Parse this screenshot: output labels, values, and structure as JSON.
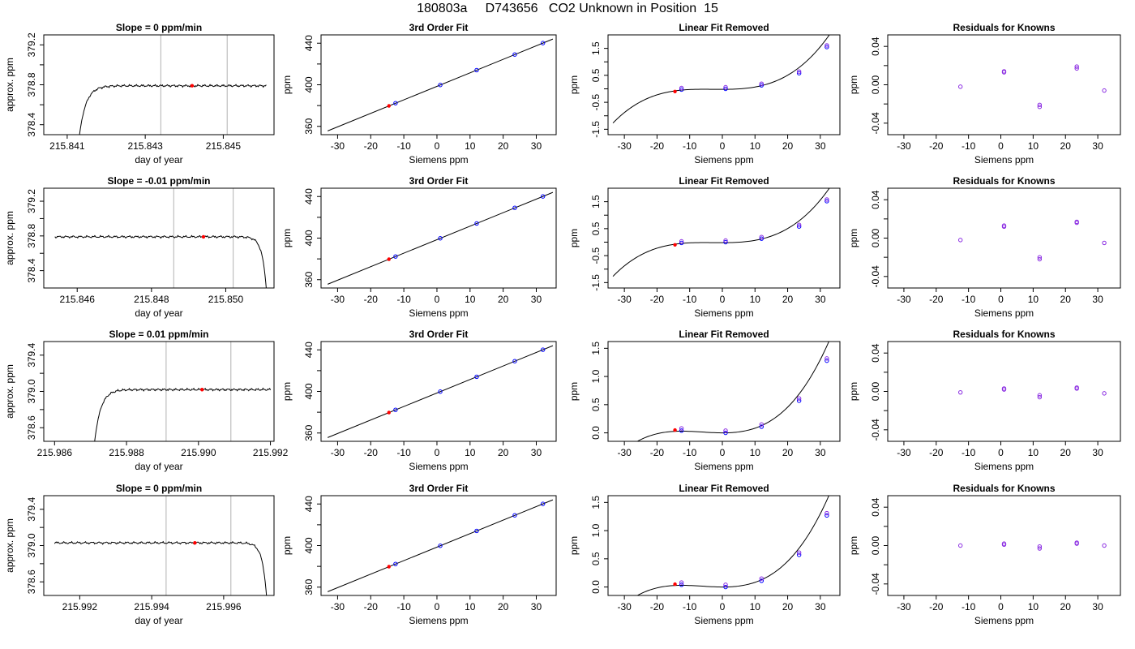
{
  "title": "180803a     D743656   CO2 Unknown in Position  15",
  "axis_labels": {
    "time_x": "day of year",
    "time_y": "approx. ppm",
    "fit_x": "Siemens ppm",
    "fit_y": "ppm"
  },
  "colors": {
    "line": "#000000",
    "known_points": "#0000ff",
    "residual_points": "#8a2be2",
    "unknown_point": "#ff0000",
    "window_markers": "#bebebe"
  },
  "chart_data": [
    {
      "type": "line",
      "row": 0,
      "col": 0,
      "kind": "time",
      "title": "Slope =  0  ppm/min",
      "xlabel": "day of year",
      "ylabel": "approx. ppm",
      "xlim": [
        215.8404,
        215.8463
      ],
      "ylim": [
        378.3,
        379.3
      ],
      "xticks": [
        215.841,
        215.843,
        215.845
      ],
      "xticklabels": [
        "215.841",
        "215.843",
        "215.845"
      ],
      "yticks": [
        378.4,
        378.8,
        379.2
      ],
      "yticklabels": [
        "378.4",
        "378.8",
        "379.2"
      ],
      "minor_yticks": [
        378.6,
        379.0
      ],
      "vlines": [
        215.8434,
        215.8451
      ],
      "trace": {
        "x0": 215.8413,
        "x1": 215.8461,
        "start": 378.25,
        "level": 378.79
      },
      "marker": {
        "x": 215.8442,
        "y": 378.79
      }
    },
    {
      "type": "scatter",
      "row": 0,
      "col": 1,
      "kind": "fit",
      "title": "3rd Order Fit",
      "xlabel": "Siemens ppm",
      "ylabel": "ppm",
      "xlim": [
        -35,
        36
      ],
      "ylim": [
        352,
        448
      ],
      "xticks": [
        -30,
        -20,
        -10,
        0,
        10,
        20,
        30
      ],
      "xticklabels": [
        "-30",
        "-20",
        "-10",
        "0",
        "10",
        "20",
        "30"
      ],
      "yticks": [
        360,
        400,
        440
      ],
      "yticklabels": [
        "360",
        "400",
        "440"
      ],
      "minor_yticks": [
        380,
        420
      ],
      "curve": {
        "a": 398.5,
        "b": 1.3,
        "x0": -33,
        "x1": 35
      },
      "knowns": [
        {
          "x": -12.5,
          "y": 382.3
        },
        {
          "x": 1.0,
          "y": 399.8
        },
        {
          "x": 12.0,
          "y": 414.1
        },
        {
          "x": 23.5,
          "y": 429.1
        },
        {
          "x": 32.0,
          "y": 440.1
        }
      ],
      "unknown": {
        "x": -14.5,
        "y": 379.7
      }
    },
    {
      "type": "line",
      "row": 0,
      "col": 2,
      "kind": "residcurve",
      "title": "Linear Fit Removed",
      "xlabel": "Siemens ppm",
      "ylabel": "ppm",
      "xlim": [
        -35,
        36
      ],
      "ylim": [
        -1.7,
        2.0
      ],
      "xticks": [
        -30,
        -20,
        -10,
        0,
        10,
        20,
        30
      ],
      "xticklabels": [
        "-30",
        "-20",
        "-10",
        "0",
        "10",
        "20",
        "30"
      ],
      "yticks": [
        -1.5,
        -0.5,
        0.5,
        1.5
      ],
      "yticklabels": [
        "-1.5",
        "-0.5",
        "0.5",
        "1.5"
      ],
      "minor_yticks": [
        -1.0,
        0.0,
        1.0
      ],
      "curve": {
        "c": 0.045,
        "d": 5e-05,
        "x0": -33.5,
        "x1": 35
      },
      "knowns": [
        {
          "x": -12.5,
          "y": -0.03
        },
        {
          "x": 1.0,
          "y": 0.0
        },
        {
          "x": 12.0,
          "y": 0.13
        },
        {
          "x": 23.5,
          "y": 0.58
        },
        {
          "x": 32.0,
          "y": 1.55
        }
      ],
      "knowns_pair_offset": 0.06,
      "unknown": {
        "x": -14.5,
        "y": -0.1
      }
    },
    {
      "type": "scatter",
      "row": 0,
      "col": 3,
      "kind": "resid",
      "title": "Residuals for Knowns",
      "xlabel": "Siemens ppm",
      "ylabel": "ppm",
      "xlim": [
        -35,
        37
      ],
      "ylim": [
        -0.052,
        0.052
      ],
      "xticks": [
        -30,
        -20,
        -10,
        0,
        10,
        20,
        30
      ],
      "xticklabels": [
        "-30",
        "-20",
        "-10",
        "0",
        "10",
        "20",
        "30"
      ],
      "yticks": [
        -0.04,
        0.0,
        0.04
      ],
      "yticklabels": [
        "-0.04",
        "0.00",
        "0.04"
      ],
      "minor_yticks": [
        -0.02,
        0.02
      ],
      "points": [
        {
          "x": -12.5,
          "y": -0.002
        },
        {
          "x": 1.0,
          "y": 0.013
        },
        {
          "x": 1.0,
          "y": 0.014
        },
        {
          "x": 12.0,
          "y": -0.021
        },
        {
          "x": 12.0,
          "y": -0.023
        },
        {
          "x": 23.5,
          "y": 0.017
        },
        {
          "x": 23.5,
          "y": 0.019
        },
        {
          "x": 32.0,
          "y": -0.006
        }
      ]
    },
    {
      "type": "line",
      "row": 1,
      "col": 0,
      "kind": "time",
      "title": "Slope =  -0.01  ppm/min",
      "xlabel": "day of year",
      "ylabel": "approx. ppm",
      "xlim": [
        215.8451,
        215.8513
      ],
      "ylim": [
        378.2,
        379.35
      ],
      "xticks": [
        215.846,
        215.848,
        215.85
      ],
      "xticklabels": [
        "215.846",
        "215.848",
        "215.850"
      ],
      "yticks": [
        378.4,
        378.8,
        379.2
      ],
      "yticklabels": [
        "378.4",
        "378.8",
        "379.2"
      ],
      "minor_yticks": [
        378.6,
        379.0
      ],
      "vlines": [
        215.8486,
        215.8502
      ],
      "trace": {
        "x0": 215.8454,
        "x1": 215.8511,
        "end": 378.15,
        "level": 378.79
      },
      "marker": {
        "x": 215.8494,
        "y": 378.79
      }
    },
    {
      "type": "scatter",
      "row": 1,
      "col": 1,
      "kind": "fit",
      "title": "3rd Order Fit",
      "xlabel": "Siemens ppm",
      "ylabel": "ppm",
      "xlim": [
        -35,
        36
      ],
      "ylim": [
        352,
        448
      ],
      "xticks": [
        -30,
        -20,
        -10,
        0,
        10,
        20,
        30
      ],
      "xticklabels": [
        "-30",
        "-20",
        "-10",
        "0",
        "10",
        "20",
        "30"
      ],
      "yticks": [
        360,
        400,
        440
      ],
      "yticklabels": [
        "360",
        "400",
        "440"
      ],
      "minor_yticks": [
        380,
        420
      ],
      "curve": {
        "a": 398.5,
        "b": 1.3,
        "x0": -33,
        "x1": 35
      },
      "knowns": [
        {
          "x": -12.5,
          "y": 382.3
        },
        {
          "x": 1.0,
          "y": 399.8
        },
        {
          "x": 12.0,
          "y": 414.1
        },
        {
          "x": 23.5,
          "y": 429.1
        },
        {
          "x": 32.0,
          "y": 440.1
        }
      ],
      "unknown": {
        "x": -14.5,
        "y": 379.7
      }
    },
    {
      "type": "line",
      "row": 1,
      "col": 2,
      "kind": "residcurve",
      "title": "Linear Fit Removed",
      "xlabel": "Siemens ppm",
      "ylabel": "ppm",
      "xlim": [
        -35,
        36
      ],
      "ylim": [
        -1.7,
        2.0
      ],
      "xticks": [
        -30,
        -20,
        -10,
        0,
        10,
        20,
        30
      ],
      "xticklabels": [
        "-30",
        "-20",
        "-10",
        "0",
        "10",
        "20",
        "30"
      ],
      "yticks": [
        -1.5,
        -0.5,
        0.5,
        1.5
      ],
      "yticklabels": [
        "-1.5",
        "-0.5",
        "0.5",
        "1.5"
      ],
      "minor_yticks": [
        -1.0,
        0.0,
        1.0
      ],
      "curve": {
        "c": 0.045,
        "d": 5e-05,
        "x0": -33.5,
        "x1": 35
      },
      "knowns": [
        {
          "x": -12.5,
          "y": -0.03
        },
        {
          "x": 1.0,
          "y": 0.0
        },
        {
          "x": 12.0,
          "y": 0.13
        },
        {
          "x": 23.5,
          "y": 0.58
        },
        {
          "x": 32.0,
          "y": 1.52
        }
      ],
      "knowns_pair_offset": 0.06,
      "unknown": {
        "x": -14.5,
        "y": -0.1
      }
    },
    {
      "type": "scatter",
      "row": 1,
      "col": 3,
      "kind": "resid",
      "title": "Residuals for Knowns",
      "xlabel": "Siemens ppm",
      "ylabel": "ppm",
      "xlim": [
        -35,
        37
      ],
      "ylim": [
        -0.052,
        0.052
      ],
      "xticks": [
        -30,
        -20,
        -10,
        0,
        10,
        20,
        30
      ],
      "xticklabels": [
        "-30",
        "-20",
        "-10",
        "0",
        "10",
        "20",
        "30"
      ],
      "yticks": [
        -0.04,
        0.0,
        0.04
      ],
      "yticklabels": [
        "-0.04",
        "0.00",
        "0.04"
      ],
      "minor_yticks": [
        -0.02,
        0.02
      ],
      "points": [
        {
          "x": -12.5,
          "y": -0.002
        },
        {
          "x": 1.0,
          "y": 0.012
        },
        {
          "x": 1.0,
          "y": 0.013
        },
        {
          "x": 12.0,
          "y": -0.02
        },
        {
          "x": 12.0,
          "y": -0.022
        },
        {
          "x": 23.5,
          "y": 0.016
        },
        {
          "x": 23.5,
          "y": 0.017
        },
        {
          "x": 32.0,
          "y": -0.005
        }
      ]
    },
    {
      "type": "line",
      "row": 2,
      "col": 0,
      "kind": "time",
      "title": "Slope =  0.01  ppm/min",
      "xlabel": "day of year",
      "ylabel": "approx. ppm",
      "xlim": [
        215.9857,
        215.9921
      ],
      "ylim": [
        378.45,
        379.55
      ],
      "xticks": [
        215.986,
        215.988,
        215.99,
        215.992
      ],
      "xticklabels": [
        "215.986",
        "215.988",
        "215.990",
        "215.992"
      ],
      "yticks": [
        378.6,
        379.0,
        379.4
      ],
      "yticklabels": [
        "378.6",
        "379.0",
        "379.4"
      ],
      "minor_yticks": [
        378.8,
        379.2
      ],
      "vlines": [
        215.9891,
        215.9909
      ],
      "trace": {
        "x0": 215.9871,
        "x1": 215.992,
        "start": 378.4,
        "level": 379.02
      },
      "marker": {
        "x": 215.9901,
        "y": 379.02
      }
    },
    {
      "type": "scatter",
      "row": 2,
      "col": 1,
      "kind": "fit",
      "title": "3rd Order Fit",
      "xlabel": "Siemens ppm",
      "ylabel": "ppm",
      "xlim": [
        -35,
        36
      ],
      "ylim": [
        352,
        448
      ],
      "xticks": [
        -30,
        -20,
        -10,
        0,
        10,
        20,
        30
      ],
      "xticklabels": [
        "-30",
        "-20",
        "-10",
        "0",
        "10",
        "20",
        "30"
      ],
      "yticks": [
        360,
        400,
        440
      ],
      "yticklabels": [
        "360",
        "400",
        "440"
      ],
      "minor_yticks": [
        380,
        420
      ],
      "curve": {
        "a": 398.5,
        "b": 1.3,
        "x0": -33,
        "x1": 35
      },
      "knowns": [
        {
          "x": -12.5,
          "y": 382.3
        },
        {
          "x": 1.0,
          "y": 399.8
        },
        {
          "x": 12.0,
          "y": 414.1
        },
        {
          "x": 23.5,
          "y": 429.1
        },
        {
          "x": 32.0,
          "y": 440.1
        }
      ],
      "unknown": {
        "x": -14.5,
        "y": 379.7
      }
    },
    {
      "type": "line",
      "row": 2,
      "col": 2,
      "kind": "residcurve",
      "title": "Linear Fit Removed",
      "xlabel": "Siemens ppm",
      "ylabel": "ppm",
      "xlim": [
        -35,
        36
      ],
      "ylim": [
        -0.15,
        1.62
      ],
      "xticks": [
        -30,
        -20,
        -10,
        0,
        10,
        20,
        30
      ],
      "xticklabels": [
        "-30",
        "-20",
        "-10",
        "0",
        "10",
        "20",
        "30"
      ],
      "yticks": [
        0.0,
        0.5,
        1.0,
        1.5
      ],
      "yticklabels": [
        "0.0",
        "0.5",
        "1.0",
        "1.5"
      ],
      "minor_yticks": [],
      "curve": {
        "c": 0.0005,
        "d": 2e-05,
        "x0": -33.5,
        "x1": 35
      },
      "knowns": [
        {
          "x": -12.5,
          "y": 0.04
        },
        {
          "x": 1.0,
          "y": 0.0
        },
        {
          "x": 12.0,
          "y": 0.11
        },
        {
          "x": 23.5,
          "y": 0.57
        },
        {
          "x": 32.0,
          "y": 1.28
        }
      ],
      "knowns_pair_offset": 0.04,
      "unknown": {
        "x": -14.5,
        "y": 0.05
      }
    },
    {
      "type": "scatter",
      "row": 2,
      "col": 3,
      "kind": "resid",
      "title": "Residuals for Knowns",
      "xlabel": "Siemens ppm",
      "ylabel": "ppm",
      "xlim": [
        -35,
        37
      ],
      "ylim": [
        -0.052,
        0.052
      ],
      "xticks": [
        -30,
        -20,
        -10,
        0,
        10,
        20,
        30
      ],
      "xticklabels": [
        "-30",
        "-20",
        "-10",
        "0",
        "10",
        "20",
        "30"
      ],
      "yticks": [
        -0.04,
        0.0,
        0.04
      ],
      "yticklabels": [
        "-0.04",
        "0.00",
        "0.04"
      ],
      "minor_yticks": [
        -0.02,
        0.02
      ],
      "points": [
        {
          "x": -12.5,
          "y": -0.001
        },
        {
          "x": 1.0,
          "y": 0.002
        },
        {
          "x": 1.0,
          "y": 0.003
        },
        {
          "x": 12.0,
          "y": -0.004
        },
        {
          "x": 12.0,
          "y": -0.006
        },
        {
          "x": 23.5,
          "y": 0.003
        },
        {
          "x": 23.5,
          "y": 0.004
        },
        {
          "x": 32.0,
          "y": -0.002
        }
      ]
    },
    {
      "type": "line",
      "row": 3,
      "col": 0,
      "kind": "time",
      "title": "Slope =  0  ppm/min",
      "xlabel": "day of year",
      "ylabel": "approx. ppm",
      "xlim": [
        215.991,
        215.9974
      ],
      "ylim": [
        378.45,
        379.55
      ],
      "xticks": [
        215.992,
        215.994,
        215.996
      ],
      "xticklabels": [
        "215.992",
        "215.994",
        "215.996"
      ],
      "yticks": [
        378.6,
        379.0,
        379.4
      ],
      "yticklabels": [
        "378.6",
        "379.0",
        "379.4"
      ],
      "minor_yticks": [
        378.8,
        379.2
      ],
      "vlines": [
        215.9944,
        215.9962
      ],
      "trace": {
        "x0": 215.9913,
        "x1": 215.9972,
        "end": 378.4,
        "level": 379.03
      },
      "marker": {
        "x": 215.9952,
        "y": 379.03
      }
    },
    {
      "type": "scatter",
      "row": 3,
      "col": 1,
      "kind": "fit",
      "title": "3rd Order Fit",
      "xlabel": "Siemens ppm",
      "ylabel": "ppm",
      "xlim": [
        -35,
        36
      ],
      "ylim": [
        352,
        448
      ],
      "xticks": [
        -30,
        -20,
        -10,
        0,
        10,
        20,
        30
      ],
      "xticklabels": [
        "-30",
        "-20",
        "-10",
        "0",
        "10",
        "20",
        "30"
      ],
      "yticks": [
        360,
        400,
        440
      ],
      "yticklabels": [
        "360",
        "400",
        "440"
      ],
      "minor_yticks": [
        380,
        420
      ],
      "curve": {
        "a": 398.5,
        "b": 1.3,
        "x0": -33,
        "x1": 35
      },
      "knowns": [
        {
          "x": -12.5,
          "y": 382.3
        },
        {
          "x": 1.0,
          "y": 399.8
        },
        {
          "x": 12.0,
          "y": 414.1
        },
        {
          "x": 23.5,
          "y": 429.1
        },
        {
          "x": 32.0,
          "y": 440.1
        }
      ],
      "unknown": {
        "x": -14.5,
        "y": 379.7
      }
    },
    {
      "type": "line",
      "row": 3,
      "col": 2,
      "kind": "residcurve",
      "title": "Linear Fit Removed",
      "xlabel": "Siemens ppm",
      "ylabel": "ppm",
      "xlim": [
        -35,
        36
      ],
      "ylim": [
        -0.15,
        1.62
      ],
      "xticks": [
        -30,
        -20,
        -10,
        0,
        10,
        20,
        30
      ],
      "xticklabels": [
        "-30",
        "-20",
        "-10",
        "0",
        "10",
        "20",
        "30"
      ],
      "yticks": [
        0.0,
        0.5,
        1.0,
        1.5
      ],
      "yticklabels": [
        "0.0",
        "0.5",
        "1.0",
        "1.5"
      ],
      "minor_yticks": [],
      "curve": {
        "c": 0.0005,
        "d": 2e-05,
        "x0": -33.5,
        "x1": 35
      },
      "knowns": [
        {
          "x": -12.5,
          "y": 0.04
        },
        {
          "x": 1.0,
          "y": 0.0
        },
        {
          "x": 12.0,
          "y": 0.11
        },
        {
          "x": 23.5,
          "y": 0.57
        },
        {
          "x": 32.0,
          "y": 1.27
        }
      ],
      "knowns_pair_offset": 0.04,
      "unknown": {
        "x": -14.5,
        "y": 0.05
      }
    },
    {
      "type": "scatter",
      "row": 3,
      "col": 3,
      "kind": "resid",
      "title": "Residuals for Knowns",
      "xlabel": "Siemens ppm",
      "ylabel": "ppm",
      "xlim": [
        -35,
        37
      ],
      "ylim": [
        -0.052,
        0.052
      ],
      "xticks": [
        -30,
        -20,
        -10,
        0,
        10,
        20,
        30
      ],
      "xticklabels": [
        "-30",
        "-20",
        "-10",
        "0",
        "10",
        "20",
        "30"
      ],
      "yticks": [
        -0.04,
        0.0,
        0.04
      ],
      "yticklabels": [
        "-0.04",
        "0.00",
        "0.04"
      ],
      "minor_yticks": [
        -0.02,
        0.02
      ],
      "points": [
        {
          "x": -12.5,
          "y": 0.0
        },
        {
          "x": 1.0,
          "y": 0.001
        },
        {
          "x": 1.0,
          "y": 0.002
        },
        {
          "x": 12.0,
          "y": -0.001
        },
        {
          "x": 12.0,
          "y": -0.003
        },
        {
          "x": 23.5,
          "y": 0.002
        },
        {
          "x": 23.5,
          "y": 0.003
        },
        {
          "x": 32.0,
          "y": 0.0
        }
      ]
    }
  ]
}
